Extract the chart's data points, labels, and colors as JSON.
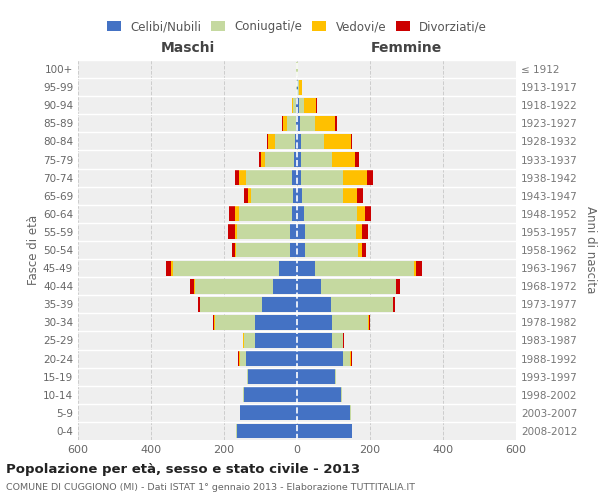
{
  "age_groups": [
    "0-4",
    "5-9",
    "10-14",
    "15-19",
    "20-24",
    "25-29",
    "30-34",
    "35-39",
    "40-44",
    "45-49",
    "50-54",
    "55-59",
    "60-64",
    "65-69",
    "70-74",
    "75-79",
    "80-84",
    "85-89",
    "90-94",
    "95-99",
    "100+"
  ],
  "birth_years": [
    "2008-2012",
    "2003-2007",
    "1998-2002",
    "1993-1997",
    "1988-1992",
    "1983-1987",
    "1978-1982",
    "1973-1977",
    "1968-1972",
    "1963-1967",
    "1958-1962",
    "1953-1957",
    "1948-1952",
    "1943-1947",
    "1938-1942",
    "1933-1937",
    "1928-1932",
    "1923-1927",
    "1918-1922",
    "1913-1917",
    "≤ 1912"
  ],
  "male_celibi": [
    165,
    155,
    145,
    135,
    140,
    115,
    115,
    95,
    65,
    50,
    18,
    20,
    15,
    10,
    15,
    8,
    5,
    3,
    2,
    1,
    1
  ],
  "male_coniugati": [
    2,
    2,
    2,
    2,
    15,
    30,
    110,
    170,
    215,
    290,
    150,
    145,
    145,
    115,
    125,
    80,
    55,
    25,
    8,
    2,
    1
  ],
  "male_vedovi": [
    0,
    0,
    0,
    0,
    5,
    2,
    2,
    2,
    2,
    5,
    3,
    5,
    10,
    10,
    20,
    12,
    20,
    10,
    4,
    0,
    0
  ],
  "male_divorziati": [
    0,
    0,
    0,
    0,
    2,
    2,
    3,
    5,
    10,
    15,
    8,
    18,
    15,
    10,
    10,
    5,
    3,
    2,
    0,
    0,
    0
  ],
  "female_nubili": [
    150,
    145,
    120,
    105,
    125,
    95,
    95,
    92,
    65,
    50,
    22,
    22,
    20,
    15,
    12,
    10,
    10,
    8,
    5,
    2,
    1
  ],
  "female_coniugate": [
    2,
    2,
    2,
    2,
    20,
    30,
    100,
    170,
    205,
    270,
    145,
    140,
    145,
    110,
    115,
    85,
    65,
    42,
    15,
    3,
    1
  ],
  "female_vedove": [
    0,
    0,
    0,
    0,
    3,
    2,
    2,
    2,
    2,
    5,
    10,
    15,
    20,
    40,
    65,
    65,
    72,
    55,
    32,
    8,
    2
  ],
  "female_divorziate": [
    0,
    0,
    0,
    0,
    2,
    2,
    3,
    5,
    10,
    18,
    12,
    18,
    18,
    15,
    15,
    10,
    5,
    5,
    2,
    0,
    0
  ],
  "color_celibi": "#4472c4",
  "color_coniugati": "#c5d9a0",
  "color_vedovi": "#ffc000",
  "color_divorziati": "#cc0000",
  "xlim": 600,
  "title": "Popolazione per età, sesso e stato civile - 2013",
  "subtitle": "COMUNE DI CUGGIONO (MI) - Dati ISTAT 1° gennaio 2013 - Elaborazione TUTTITALIA.IT",
  "ylabel_left": "Fasce di età",
  "ylabel_right": "Anni di nascita",
  "legend_labels": [
    "Celibi/Nubili",
    "Coniugati/e",
    "Vedovi/e",
    "Divorziati/e"
  ],
  "bg_color": "#efefef",
  "grid_color": "#cccccc",
  "header_maschi": "Maschi",
  "header_femmine": "Femmine"
}
